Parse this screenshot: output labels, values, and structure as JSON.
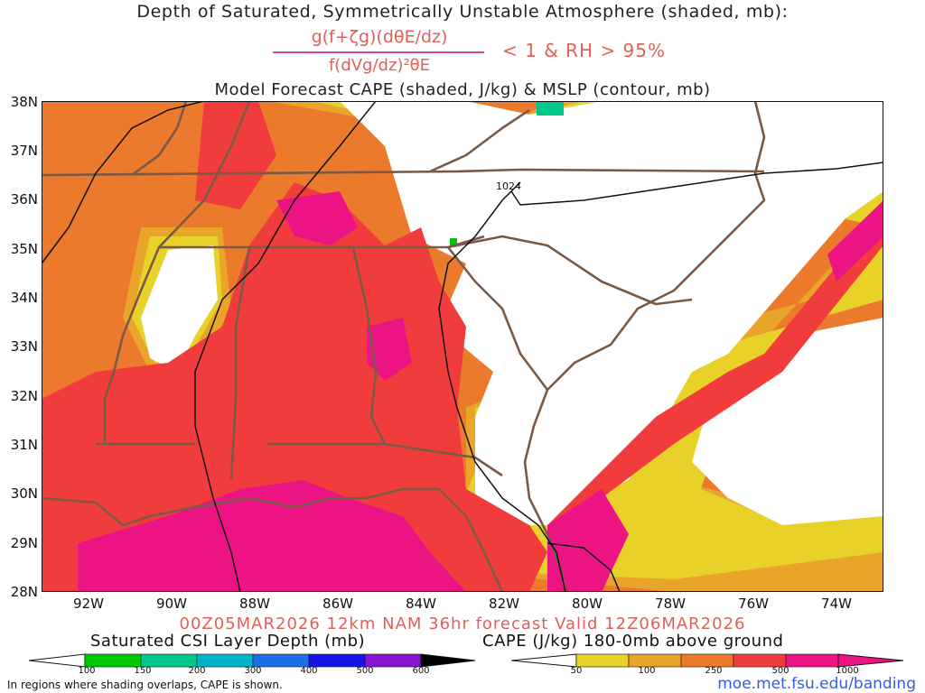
{
  "title": {
    "line1": "Depth of Saturated, Symmetrically Unstable Atmosphere (shaded, mb):",
    "numerator": "g(f+ζg)(dθE/dz)",
    "denominator": "f(dVg/dz)²θE",
    "condition": "< 1 & RH > 95%",
    "line3": "Model Forecast CAPE (shaded, J/kg) & MSLP (contour, mb)"
  },
  "axes": {
    "lat_labels": [
      "38N",
      "37N",
      "36N",
      "35N",
      "34N",
      "33N",
      "32N",
      "31N",
      "30N",
      "29N",
      "28N"
    ],
    "lon_labels": [
      "92W",
      "90W",
      "88W",
      "86W",
      "84W",
      "82W",
      "80W",
      "78W",
      "76W",
      "74W"
    ],
    "lat_range": [
      28,
      38
    ],
    "lon_range": [
      -93,
      -73
    ]
  },
  "map": {
    "isobar_label": "1024",
    "border_color": "#7a5a45",
    "isobar_color": "#111111"
  },
  "run_info": "00Z05MAR2026 12km NAM 36hr forecast Valid 12Z06MAR2026",
  "colorbar_csi": {
    "label": "Saturated CSI Layer Depth (mb)",
    "ticks": [
      "100",
      "150",
      "200",
      "300",
      "400",
      "500",
      "600"
    ],
    "colors": [
      "#00c800",
      "#00c88c",
      "#00b4c8",
      "#1a6ee6",
      "#1414e6",
      "#8214d2"
    ]
  },
  "colorbar_cape": {
    "label": "CAPE (J/kg) 180-0mb above ground",
    "ticks": [
      "50",
      "100",
      "250",
      "500",
      "1000"
    ],
    "colors": [
      "#e8d22a",
      "#e8a52a",
      "#ec7a2c",
      "#f03c3c",
      "#ec1484"
    ]
  },
  "footer": {
    "note": "In regions where shading overlaps, CAPE is shown.",
    "credit": "moe.met.fsu.edu/banding"
  }
}
